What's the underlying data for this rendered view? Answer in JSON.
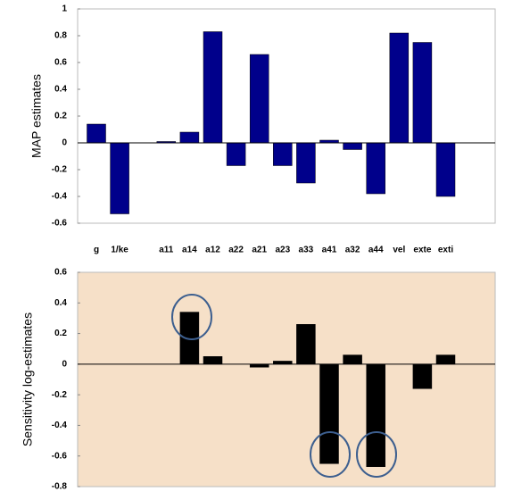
{
  "chart_data": [
    {
      "type": "bar",
      "ylabel": "MAP estimates",
      "color": "#00008b",
      "categories": [
        "g",
        "1/ke",
        null,
        "a11",
        "a14",
        "a12",
        "a22",
        "a21",
        "a23",
        "a33",
        "a41",
        "a32",
        "a44",
        "vel",
        "exte",
        "exti"
      ],
      "values": [
        0.14,
        -0.53,
        null,
        0.01,
        0.08,
        0.83,
        -0.17,
        0.66,
        -0.17,
        -0.3,
        0.02,
        -0.05,
        -0.38,
        0.82,
        0.75,
        -0.4
      ],
      "ylim": [
        -0.6,
        1
      ],
      "yticks": [
        -0.6,
        -0.4,
        -0.2,
        0,
        0.2,
        0.4,
        0.6,
        0.8,
        1
      ]
    },
    {
      "type": "bar",
      "ylabel": "Sensitivity log-estimates",
      "color": "#000000",
      "values": [
        null,
        null,
        null,
        null,
        0.34,
        0.05,
        null,
        -0.02,
        0.02,
        0.26,
        -0.65,
        0.06,
        -0.67,
        null,
        -0.16,
        0.06
      ],
      "ylim": [
        -0.8,
        0.6
      ],
      "yticks": [
        -0.8,
        -0.6,
        -0.4,
        -0.2,
        0,
        0.2,
        0.4,
        0.6
      ]
    }
  ]
}
